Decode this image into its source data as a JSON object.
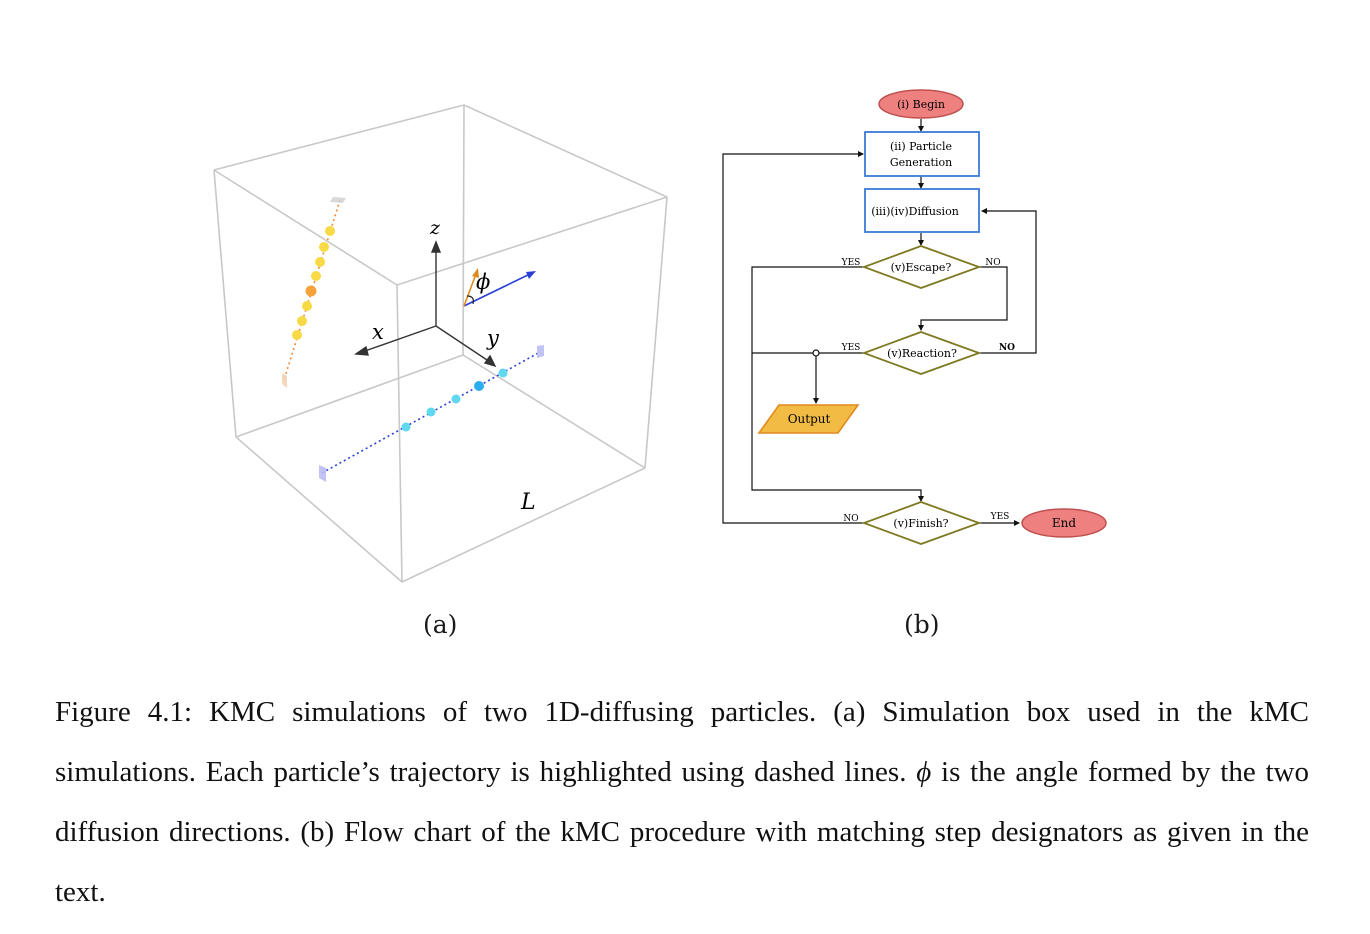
{
  "panel_a": {
    "axis_labels": {
      "x": "x",
      "y": "y",
      "z": "z"
    },
    "angle_label": "ϕ",
    "box_label": "L"
  },
  "panel_b": {
    "nodes": {
      "begin": "(i) Begin",
      "generation_line1": "(ii) Particle",
      "generation_line2": "Generation",
      "diffusion": "(iii)(iv)Diffusion",
      "escape": "(v)Escape?",
      "reaction": "(v)Reaction?",
      "output": "Output",
      "finish": "(v)Finish?",
      "end": "End"
    },
    "edge_labels": {
      "escape_yes": "YES",
      "escape_no": "NO",
      "reaction_yes": "YES",
      "reaction_no": "NO",
      "finish_no": "NO",
      "finish_yes": "YES"
    },
    "colors": {
      "terminal_fill": "#ee8080",
      "terminal_stroke": "#c05050",
      "process_stroke": "#3a7bd5",
      "decision_stroke": "#7d7a22",
      "output_fill": "#f2bc44",
      "output_stroke": "#e08a1e"
    }
  },
  "subfig_labels": {
    "a": "(a)",
    "b": "(b)"
  },
  "caption": {
    "part1": "Figure 4.1: KMC simulations of two 1D-diffusing particles. (a) Simulation box used in the kMC simulations. Each particle’s trajectory is highlighted using dashed lines. ",
    "phi": "ϕ",
    "part2": " is the angle formed by the two diffusion directions. (b) Flow chart of the kMC procedure with matching step designators as given in the text."
  }
}
